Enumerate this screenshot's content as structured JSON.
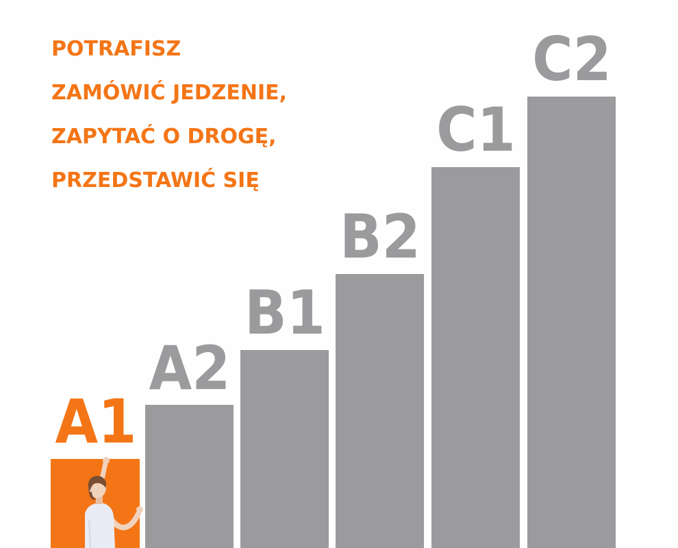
{
  "headline": {
    "lines": [
      "POTRAFISZ",
      "ZAMÓWIĆ JEDZENIE,",
      "ZAPYTAĆ O DROGĘ,",
      "PRZEDSTAWIĆ SIĘ"
    ]
  },
  "levels": [
    {
      "label": "A1",
      "active": true
    },
    {
      "label": "A2",
      "active": false
    },
    {
      "label": "B1",
      "active": false
    },
    {
      "label": "B2",
      "active": false
    },
    {
      "label": "C1",
      "active": false
    },
    {
      "label": "C2",
      "active": false
    }
  ],
  "colors": {
    "accent": "#f47516",
    "step": "#9b9a9c",
    "background": "#ffffff"
  },
  "illustration": {
    "icon": "person-climbing-icon"
  }
}
